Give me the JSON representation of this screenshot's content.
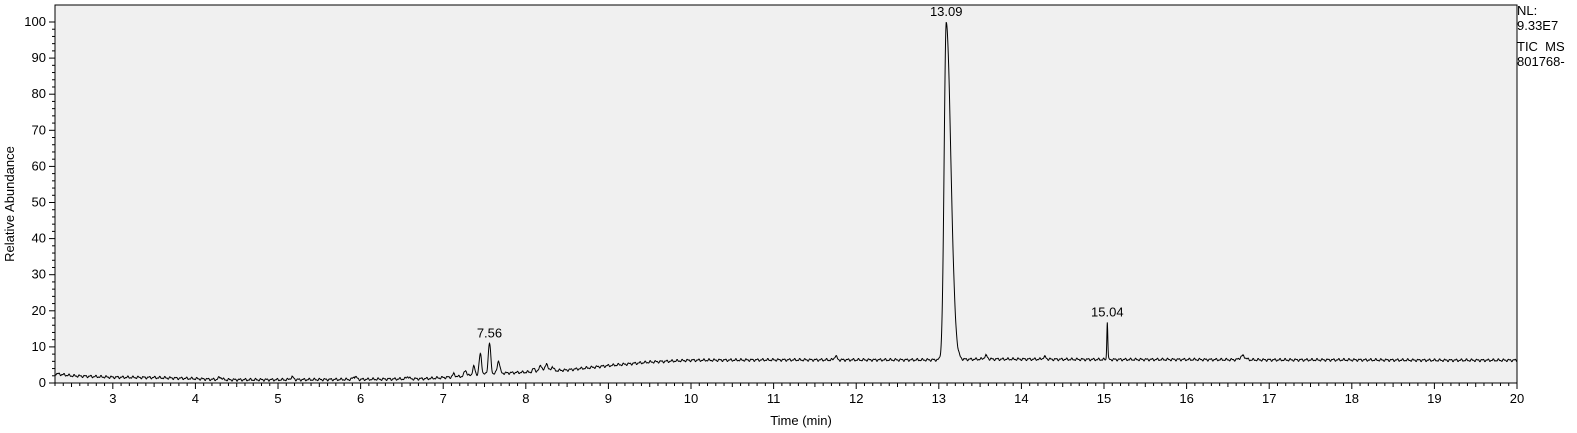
{
  "chart_data": {
    "type": "line",
    "xlabel": "Time (min)",
    "ylabel": "Relative Abundance",
    "xlim": [
      2.3,
      20
    ],
    "ylim": [
      0,
      100
    ],
    "x_ticks": [
      3,
      4,
      5,
      6,
      7,
      8,
      9,
      10,
      11,
      12,
      13,
      14,
      15,
      16,
      17,
      18,
      19,
      20
    ],
    "y_ticks": [
      0,
      10,
      20,
      30,
      40,
      50,
      60,
      70,
      80,
      90,
      100
    ],
    "grid": false,
    "baseline": [
      [
        2.3,
        2.6
      ],
      [
        2.5,
        2.0
      ],
      [
        3.0,
        1.6
      ],
      [
        3.5,
        1.5
      ],
      [
        4.0,
        1.2
      ],
      [
        4.3,
        0.9
      ],
      [
        5.0,
        0.9
      ],
      [
        6.0,
        1.0
      ],
      [
        6.8,
        1.2
      ],
      [
        7.2,
        1.8
      ],
      [
        7.6,
        2.6
      ],
      [
        8.0,
        3.0
      ],
      [
        8.5,
        3.6
      ],
      [
        9.0,
        4.8
      ],
      [
        9.5,
        5.8
      ],
      [
        10.0,
        6.3
      ],
      [
        11.0,
        6.4
      ],
      [
        12.0,
        6.4
      ],
      [
        12.9,
        6.4
      ],
      [
        13.5,
        6.6
      ],
      [
        14.0,
        6.6
      ],
      [
        15.0,
        6.5
      ],
      [
        16.0,
        6.5
      ],
      [
        17.0,
        6.4
      ],
      [
        18.0,
        6.4
      ],
      [
        19.0,
        6.3
      ],
      [
        20.0,
        6.3
      ]
    ],
    "peaks": [
      {
        "rt": 4.3,
        "height": 1.6,
        "width": 0.02
      },
      {
        "rt": 5.17,
        "height": 1.6,
        "width": 0.02
      },
      {
        "rt": 5.93,
        "height": 1.8,
        "width": 0.02
      },
      {
        "rt": 6.57,
        "height": 1.8,
        "width": 0.015
      },
      {
        "rt": 7.13,
        "height": 2.5,
        "width": 0.015
      },
      {
        "rt": 7.27,
        "height": 3.5,
        "width": 0.015
      },
      {
        "rt": 7.37,
        "height": 4.5,
        "width": 0.015
      },
      {
        "rt": 7.45,
        "height": 8.0,
        "width": 0.015
      },
      {
        "rt": 7.56,
        "height": 11.0,
        "width": 0.015
      },
      {
        "rt": 7.67,
        "height": 6.2,
        "width": 0.015
      },
      {
        "rt": 8.1,
        "height": 4.0,
        "width": 0.015
      },
      {
        "rt": 8.18,
        "height": 5.0,
        "width": 0.015
      },
      {
        "rt": 8.25,
        "height": 5.5,
        "width": 0.015
      },
      {
        "rt": 8.32,
        "height": 4.5,
        "width": 0.015
      },
      {
        "rt": 11.75,
        "height": 7.5,
        "width": 0.015
      },
      {
        "rt": 13.09,
        "height": 100.0,
        "width": 0.025
      },
      {
        "rt": 13.57,
        "height": 7.5,
        "width": 0.02
      },
      {
        "rt": 14.28,
        "height": 7.2,
        "width": 0.02
      },
      {
        "rt": 15.04,
        "height": 16.8,
        "width": 0.006
      },
      {
        "rt": 16.68,
        "height": 7.5,
        "width": 0.03
      }
    ],
    "peak_labels": [
      {
        "label": "7.56",
        "rt": 7.56,
        "height": 11.0
      },
      {
        "label": "13.09",
        "rt": 13.09,
        "height": 100.0
      },
      {
        "label": "15.04",
        "rt": 15.04,
        "height": 16.8
      }
    ],
    "colors": {
      "plot_bg": "#f0f0f0",
      "trace": "#000000"
    }
  },
  "side_info": {
    "nl_label": "NL:",
    "nl_value": "9.33E7",
    "scan_filter": "TIC  MS",
    "file_name": "801768-"
  }
}
